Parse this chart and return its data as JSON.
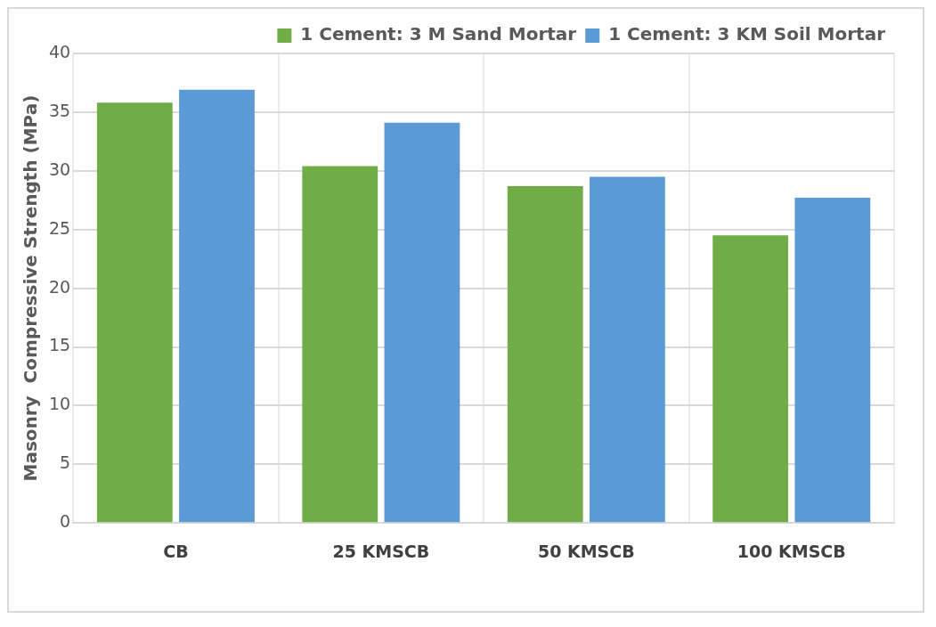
{
  "chart_data": {
    "type": "bar",
    "ylabel": "Masonry  Compressive Strength (MPa)",
    "categories": [
      "CB",
      "25 KMSCB",
      "50 KMSCB",
      "100 KMSCB"
    ],
    "series": [
      {
        "name": "1 Cement: 3 M Sand Mortar",
        "color": "#70ad47",
        "values": [
          35.8,
          30.4,
          28.7,
          24.5
        ]
      },
      {
        "name": "1 Cement: 3 KM Soil Mortar",
        "color": "#5b9bd5",
        "values": [
          36.9,
          34.1,
          29.5,
          27.7
        ]
      }
    ],
    "ylim": [
      0,
      40
    ],
    "yticks": [
      0,
      5,
      10,
      15,
      20,
      25,
      30,
      35,
      40
    ],
    "grid": true,
    "legend": "top right"
  }
}
